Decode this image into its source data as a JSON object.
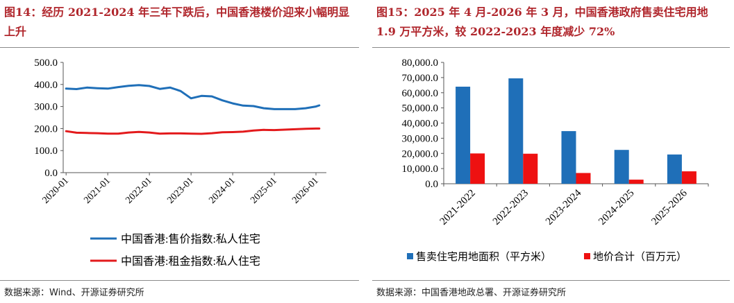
{
  "left": {
    "title": "图14：经历 2021-2024 年三年下跌后，中国香港楼价迎来小幅明显上升",
    "source": "数据来源：Wind、开源证券研究所"
  },
  "right": {
    "title": "图15：2025 年 4 月-2026 年 3 月，中国香港政府售卖住宅用地 1.9 万平方米，较 2022-2023 年度减少 72%",
    "source": "数据来源：中国香港地政总署、开源证券研究所"
  },
  "chart_data": [
    {
      "type": "line",
      "title": "",
      "xlabel": "",
      "ylabel": "",
      "ylim": [
        0,
        500
      ],
      "yticks": [
        "0.0",
        "100.0",
        "200.0",
        "300.0",
        "400.0",
        "500.0"
      ],
      "xticks": [
        "2020-01",
        "2021-01",
        "2022-01",
        "2023-01",
        "2024-01",
        "2025-01",
        "2026-01"
      ],
      "x": [
        2020.0,
        2020.25,
        2020.5,
        2020.75,
        2021.0,
        2021.25,
        2021.5,
        2021.75,
        2022.0,
        2022.25,
        2022.5,
        2022.75,
        2023.0,
        2023.25,
        2023.5,
        2023.75,
        2024.0,
        2024.25,
        2024.5,
        2024.75,
        2025.0,
        2025.25,
        2025.5,
        2025.75,
        2026.0,
        2026.08
      ],
      "series": [
        {
          "name": "中国香港:售价指数:私人住宅",
          "color": "#1f6fb8",
          "values": [
            381,
            379,
            386,
            383,
            381,
            388,
            394,
            397,
            393,
            380,
            386,
            370,
            337,
            348,
            346,
            328,
            314,
            304,
            302,
            292,
            288,
            288,
            288,
            292,
            300,
            305
          ]
        },
        {
          "name": "中国香港:租金指数:私人住宅",
          "color": "#e31a1c",
          "values": [
            188,
            181,
            180,
            179,
            177,
            177,
            182,
            185,
            182,
            177,
            178,
            178,
            177,
            176,
            179,
            183,
            184,
            186,
            191,
            194,
            193,
            195,
            197,
            199,
            200,
            200
          ]
        }
      ],
      "legend": "bottom",
      "grid": false
    },
    {
      "type": "bar",
      "title": "",
      "ylim": [
        0,
        80000
      ],
      "yticks": [
        "0.0",
        "10,000.0",
        "20,000.0",
        "30,000.0",
        "40,000.0",
        "50,000.0",
        "60,000.0",
        "70,000.0",
        "80,000.0"
      ],
      "categories": [
        "2021-2022",
        "2022-2023",
        "2023-2024",
        "2024-2025",
        "2025-2026"
      ],
      "series": [
        {
          "name": "售卖住宅用地面积（平方米）",
          "color": "#1f6fb8",
          "values": [
            64000,
            69500,
            34700,
            22300,
            19300
          ]
        },
        {
          "name": "地价合计（百万元）",
          "color": "#ee1111",
          "values": [
            20000,
            19800,
            7100,
            2700,
            8200
          ]
        }
      ],
      "legend": "bottom",
      "grid": false
    }
  ]
}
